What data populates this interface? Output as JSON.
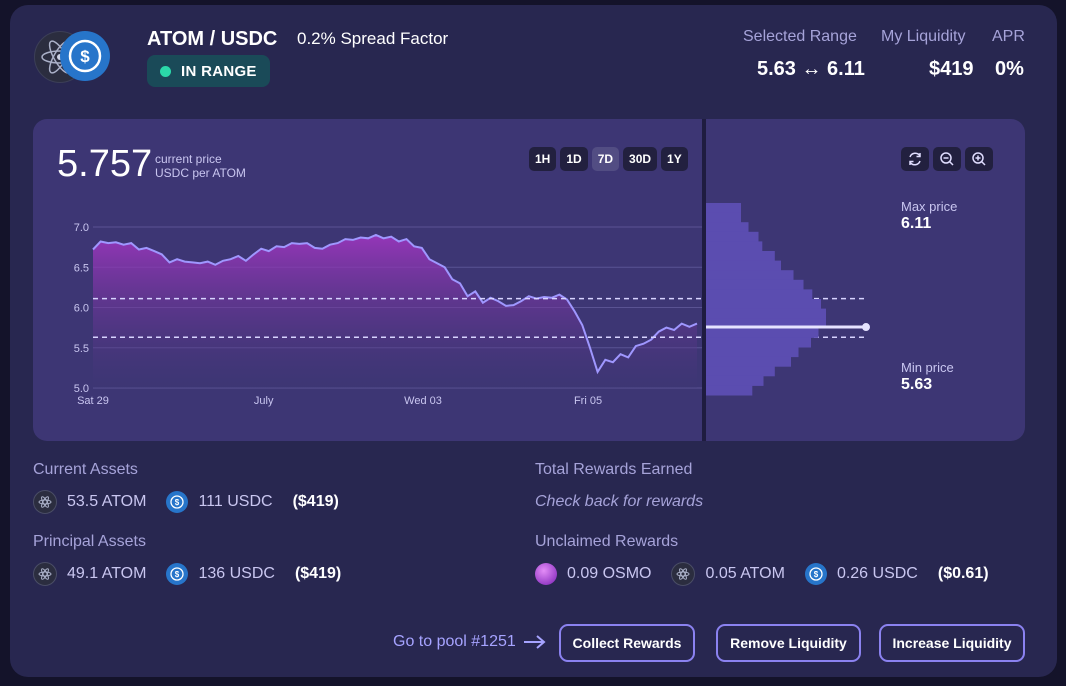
{
  "pool": {
    "title": "ATOM / USDC",
    "spread_factor": "0.2% Spread Factor",
    "status_badge": "IN RANGE",
    "tokens": [
      "atom-icon",
      "usdc-icon"
    ]
  },
  "stats": {
    "selected_range_label": "Selected Range",
    "selected_range_value": "5.63 ↔ 6.11",
    "my_liquidity_label": "My Liquidity",
    "my_liquidity_value": "$419",
    "apr_label": "APR",
    "apr_value": "0%"
  },
  "price": {
    "current": "5.757",
    "label_line1": "current price",
    "label_line2": "USDC per ATOM"
  },
  "timeframes": [
    {
      "label": "1H",
      "active": false
    },
    {
      "label": "1D",
      "active": false
    },
    {
      "label": "7D",
      "active": true
    },
    {
      "label": "30D",
      "active": false
    },
    {
      "label": "1Y",
      "active": false
    }
  ],
  "chart_controls": [
    "refresh-icon",
    "zoom-out-icon",
    "zoom-in-icon"
  ],
  "range": {
    "max_label": "Max price",
    "max_value": "6.11",
    "min_label": "Min price",
    "min_value": "5.63"
  },
  "chart_data": {
    "type": "line",
    "ylim": [
      5.0,
      7.0
    ],
    "y_ticks": [
      "7.0",
      "6.5",
      "6.0",
      "5.5",
      "5.0"
    ],
    "x_ticks": [
      "Sat 29",
      "July",
      "Wed 03",
      "Fri 05"
    ],
    "x_tick_pos": [
      0.0,
      0.3,
      0.58,
      0.87
    ],
    "range_lines": [
      6.11,
      5.63
    ],
    "current_price": 5.757,
    "series": [
      {
        "values": [
          6.72,
          6.82,
          6.8,
          6.81,
          6.78,
          6.8,
          6.72,
          6.74,
          6.7,
          6.66,
          6.56,
          6.6,
          6.57,
          6.56,
          6.55,
          6.57,
          6.53,
          6.58,
          6.6,
          6.64,
          6.58,
          6.66,
          6.73,
          6.7,
          6.76,
          6.75,
          6.8,
          6.79,
          6.8,
          6.74,
          6.73,
          6.78,
          6.8,
          6.85,
          6.84,
          6.87,
          6.86,
          6.9,
          6.86,
          6.88,
          6.82,
          6.85,
          6.76,
          6.74,
          6.6,
          6.55,
          6.5,
          6.35,
          6.3,
          6.14,
          6.2,
          6.06,
          6.12,
          6.08,
          6.02,
          6.03,
          6.08,
          6.14,
          6.11,
          6.13,
          6.12,
          6.16,
          6.1,
          5.95,
          5.78,
          5.5,
          5.2,
          5.35,
          5.32,
          5.42,
          5.38,
          5.52,
          5.55,
          5.6,
          5.7,
          5.75,
          5.72,
          5.8,
          5.76,
          5.8
        ]
      }
    ],
    "liquidity_depth": [
      0.28,
      0.28,
      0.34,
      0.42,
      0.45,
      0.55,
      0.6,
      0.7,
      0.78,
      0.85,
      0.92,
      0.96,
      0.96,
      0.9,
      0.84,
      0.74,
      0.68,
      0.55,
      0.46,
      0.37
    ]
  },
  "current_assets": {
    "title": "Current Assets",
    "atom": "53.5 ATOM",
    "usdc": "111 USDC",
    "usd": "($419)"
  },
  "principal_assets": {
    "title": "Principal Assets",
    "atom": "49.1 ATOM",
    "usdc": "136 USDC",
    "usd": "($419)"
  },
  "total_rewards": {
    "title": "Total Rewards Earned",
    "message": "Check back for rewards"
  },
  "unclaimed_rewards": {
    "title": "Unclaimed Rewards",
    "osmo": "0.09 OSMO",
    "atom": "0.05 ATOM",
    "usdc": "0.26 USDC",
    "usd": "($0.61)"
  },
  "actions": {
    "goto_pool": "Go to pool #1251",
    "collect": "Collect Rewards",
    "remove": "Remove Liquidity",
    "increase": "Increase Liquidity"
  }
}
